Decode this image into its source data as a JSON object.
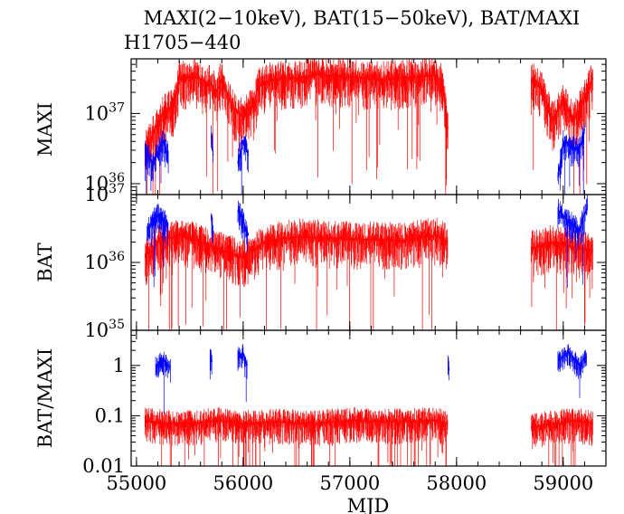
{
  "title": "MAXI(2−10keV), BAT(15−50keV), BAT/MAXI",
  "subtitle": "H1705−440",
  "colors": {
    "red": "#ff0000",
    "blue": "#0000ff",
    "axis": "#000000"
  },
  "chart_data": [
    {
      "type": "line",
      "panel": "maxi",
      "ylabel": "MAXI",
      "yscale": "log",
      "ylim": [
        7e+35,
        6e+37
      ],
      "yticks": [
        {
          "value": 1e+36,
          "base": "10",
          "exp": "36"
        },
        {
          "value": 1e+37,
          "base": "10",
          "exp": "37"
        }
      ],
      "xlim": [
        54950,
        59400
      ],
      "series": [
        {
          "color": "red",
          "segments": [
            [
              [
                55080,
                3e+36
              ],
              [
                55150,
                5e+36
              ],
              [
                55250,
                1e+37
              ],
              [
                55350,
                1.3e+37
              ],
              [
                55400,
                3e+37
              ],
              [
                55500,
                3.3e+37
              ],
              [
                55600,
                3.1e+37
              ],
              [
                55700,
                2.6e+37
              ],
              [
                55750,
                2e+37
              ],
              [
                55800,
                3.2e+37
              ],
              [
                55900,
                1.2e+37
              ],
              [
                56000,
                9e+36
              ],
              [
                56100,
                1.4e+37
              ],
              [
                56150,
                2.6e+37
              ],
              [
                56300,
                3e+37
              ],
              [
                56500,
                3.2e+37
              ],
              [
                56700,
                3.6e+37
              ],
              [
                57000,
                3.3e+37
              ],
              [
                57300,
                3e+37
              ],
              [
                57600,
                3.3e+37
              ],
              [
                57800,
                3.5e+37
              ],
              [
                57870,
                2.7e+37
              ],
              [
                57920,
                6e+36
              ]
            ],
            [
              [
                58700,
                3e+37
              ],
              [
                58800,
                2.2e+37
              ],
              [
                58900,
                8e+36
              ],
              [
                59000,
                1.6e+37
              ],
              [
                59100,
                8e+36
              ],
              [
                59200,
                1.6e+37
              ],
              [
                59280,
                3.2e+37
              ]
            ]
          ]
        },
        {
          "color": "blue",
          "segments": [
            [
              [
                55080,
                3e+36
              ],
              [
                55150,
                2e+36
              ],
              [
                55250,
                4e+36
              ],
              [
                55300,
                2.5e+36
              ]
            ],
            [
              [
                55700,
                5e+36
              ],
              [
                55720,
                2.5e+36
              ]
            ],
            [
              [
                55950,
                2e+36
              ],
              [
                56000,
                4e+36
              ],
              [
                56050,
                2.5e+36
              ]
            ],
            [
              [
                58950,
                1.2e+36
              ],
              [
                59000,
                4e+36
              ],
              [
                59150,
                3e+36
              ],
              [
                59200,
                6e+36
              ]
            ]
          ]
        }
      ]
    },
    {
      "type": "line",
      "panel": "bat",
      "ylabel": "BAT",
      "yscale": "log",
      "ylim": [
        1e+35,
        1e+37
      ],
      "yticks": [
        {
          "value": 1e+35,
          "base": "10",
          "exp": "35"
        },
        {
          "value": 1e+36,
          "base": "10",
          "exp": "36"
        },
        {
          "value": 1e+37,
          "base": "10",
          "exp": "37"
        }
      ],
      "xlim": [
        54950,
        59400
      ],
      "series": [
        {
          "color": "red",
          "segments": [
            [
              [
                55080,
                1.2e+36
              ],
              [
                55200,
                2e+36
              ],
              [
                55400,
                2.5e+36
              ],
              [
                55600,
                2e+36
              ],
              [
                55800,
                1.5e+36
              ],
              [
                56000,
                1.2e+36
              ],
              [
                56200,
                2e+36
              ],
              [
                56500,
                2.4e+36
              ],
              [
                57000,
                2.2e+36
              ],
              [
                57500,
                2.1e+36
              ],
              [
                57800,
                2.5e+36
              ],
              [
                57920,
                2e+36
              ]
            ],
            [
              [
                58700,
                1.6e+36
              ],
              [
                58900,
                2e+36
              ],
              [
                59100,
                1.7e+36
              ],
              [
                59280,
                1.5e+36
              ]
            ]
          ]
        },
        {
          "color": "blue",
          "segments": [
            [
              [
                55100,
                3e+36
              ],
              [
                55200,
                5e+36
              ],
              [
                55300,
                3.5e+36
              ]
            ],
            [
              [
                55700,
                5e+36
              ],
              [
                55720,
                2.5e+36
              ]
            ],
            [
              [
                55950,
                6e+36
              ],
              [
                56000,
                4e+36
              ],
              [
                56050,
                2.5e+36
              ]
            ],
            [
              [
                58950,
                6e+36
              ],
              [
                59050,
                4e+36
              ],
              [
                59150,
                3e+36
              ],
              [
                59230,
                7e+36
              ]
            ]
          ]
        }
      ]
    },
    {
      "type": "line",
      "panel": "ratio",
      "ylabel": "BAT/MAXI",
      "yscale": "log",
      "ylim": [
        0.01,
        5
      ],
      "yticks": [
        {
          "value": 0.01,
          "label": "0.01"
        },
        {
          "value": 0.1,
          "label": "0.1"
        },
        {
          "value": 1,
          "label": "1"
        }
      ],
      "xlabel": "MJD",
      "xlim": [
        54950,
        59400
      ],
      "xticks": [
        55000,
        56000,
        57000,
        58000,
        59000
      ],
      "series": [
        {
          "color": "red",
          "segments": [
            [
              [
                55080,
                0.08
              ],
              [
                55300,
                0.07
              ],
              [
                55500,
                0.07
              ],
              [
                55800,
                0.08
              ],
              [
                56000,
                0.07
              ],
              [
                56300,
                0.075
              ],
              [
                56700,
                0.07
              ],
              [
                57000,
                0.08
              ],
              [
                57400,
                0.075
              ],
              [
                57800,
                0.08
              ],
              [
                57920,
                0.07
              ]
            ],
            [
              [
                58700,
                0.06
              ],
              [
                58900,
                0.07
              ],
              [
                59100,
                0.08
              ],
              [
                59280,
                0.07
              ]
            ]
          ]
        },
        {
          "color": "blue",
          "segments": [
            [
              [
                55180,
                1
              ],
              [
                55250,
                1.3
              ],
              [
                55320,
                0.9
              ]
            ],
            [
              [
                55690,
                1.6
              ],
              [
                55710,
                1.2
              ]
            ],
            [
              [
                55950,
                1.5
              ],
              [
                56000,
                1.8
              ],
              [
                56040,
                1.0
              ]
            ],
            [
              [
                58950,
                1.3
              ],
              [
                59050,
                1.8
              ],
              [
                59150,
                1.0
              ],
              [
                59220,
                1.5
              ]
            ],
            [
              [
                57920,
                1.2
              ],
              [
                57930,
                0.8
              ]
            ]
          ]
        }
      ]
    }
  ]
}
